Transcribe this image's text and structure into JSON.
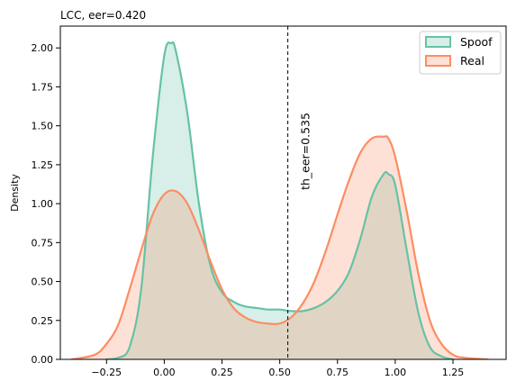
{
  "chart_data": {
    "type": "area",
    "title": "LCC, eer=0.420",
    "xlabel": "",
    "ylabel": "Density",
    "xlim": [
      -0.45,
      1.48
    ],
    "ylim": [
      0,
      2.14
    ],
    "x_ticks": [
      -0.25,
      0.0,
      0.25,
      0.5,
      0.75,
      1.0,
      1.25
    ],
    "x_tick_labels": [
      "−0.25",
      "0.00",
      "0.25",
      "0.50",
      "0.75",
      "1.00",
      "1.25"
    ],
    "y_ticks": [
      0,
      0.25,
      0.5,
      0.75,
      1.0,
      1.25,
      1.5,
      1.75,
      2.0
    ],
    "y_tick_labels": [
      "0.00",
      "0.25",
      "0.50",
      "0.75",
      "1.00",
      "1.25",
      "1.50",
      "1.75",
      "2.00"
    ],
    "grid": false,
    "legend_position": "top-right",
    "series": [
      {
        "name": "Spoof",
        "color": "#66c2a5",
        "x": [
          -0.25,
          -0.2,
          -0.15,
          -0.1,
          -0.05,
          0.0,
          0.03,
          0.05,
          0.1,
          0.15,
          0.2,
          0.25,
          0.3,
          0.35,
          0.4,
          0.45,
          0.5,
          0.55,
          0.6,
          0.65,
          0.7,
          0.75,
          0.8,
          0.85,
          0.9,
          0.95,
          0.97,
          1.0,
          1.05,
          1.1,
          1.15,
          1.2,
          1.25
        ],
        "y": [
          0.0,
          0.01,
          0.08,
          0.45,
          1.3,
          1.95,
          2.03,
          1.98,
          1.58,
          1.0,
          0.6,
          0.43,
          0.37,
          0.34,
          0.33,
          0.32,
          0.32,
          0.31,
          0.31,
          0.33,
          0.37,
          0.44,
          0.56,
          0.78,
          1.05,
          1.19,
          1.19,
          1.12,
          0.7,
          0.3,
          0.08,
          0.02,
          0.0
        ]
      },
      {
        "name": "Real",
        "color": "#fc8d62",
        "x": [
          -0.4,
          -0.3,
          -0.25,
          -0.2,
          -0.15,
          -0.1,
          -0.05,
          0.0,
          0.05,
          0.1,
          0.15,
          0.2,
          0.25,
          0.3,
          0.35,
          0.4,
          0.45,
          0.5,
          0.55,
          0.6,
          0.65,
          0.7,
          0.75,
          0.8,
          0.85,
          0.9,
          0.95,
          0.97,
          1.0,
          1.05,
          1.1,
          1.15,
          1.2,
          1.25,
          1.3,
          1.4
        ],
        "y": [
          0.0,
          0.03,
          0.1,
          0.22,
          0.45,
          0.7,
          0.93,
          1.06,
          1.08,
          1.0,
          0.83,
          0.63,
          0.45,
          0.33,
          0.27,
          0.24,
          0.23,
          0.23,
          0.27,
          0.36,
          0.5,
          0.7,
          0.93,
          1.15,
          1.33,
          1.42,
          1.43,
          1.42,
          1.3,
          0.95,
          0.55,
          0.25,
          0.1,
          0.03,
          0.01,
          0.0
        ]
      }
    ],
    "annotations": [
      {
        "type": "vline",
        "x": 0.535,
        "style": "dashed",
        "color": "#000000",
        "label": "th_eer=0.535"
      }
    ]
  }
}
